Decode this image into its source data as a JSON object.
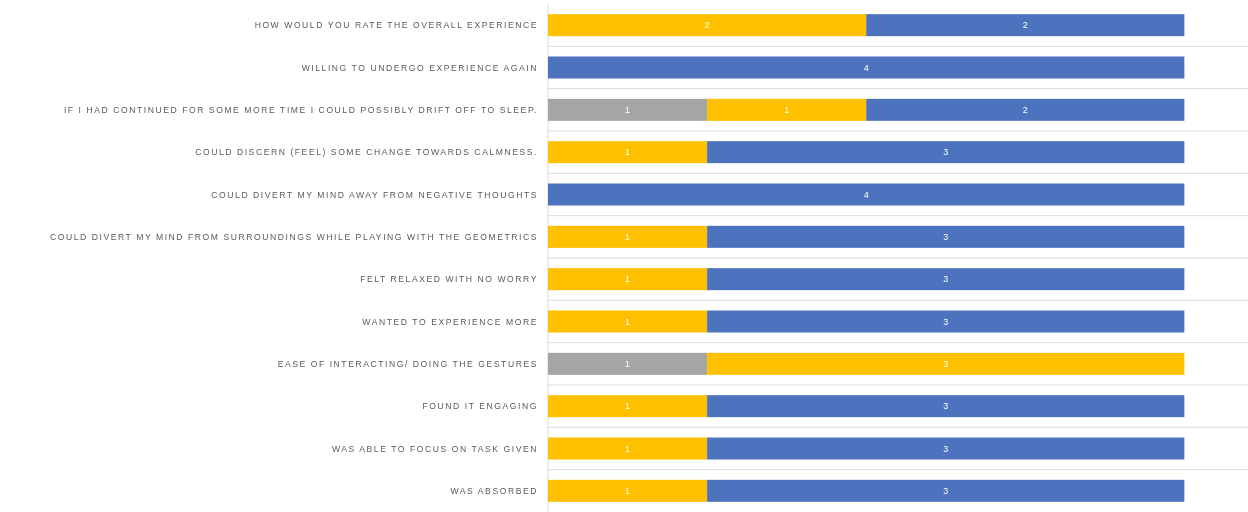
{
  "chart_data": {
    "type": "bar",
    "orientation": "horizontal",
    "stacked": true,
    "data_labels": true,
    "grid": "y",
    "tick_labels": "y",
    "xlim": [
      0,
      4.4
    ],
    "categories": [
      "HOW WOULD YOU RATE THE OVERALL EXPERIENCE",
      "WILLING TO UNDERGO EXPERIENCE AGAIN",
      "IF I HAD CONTINUED FOR SOME MORE TIME I COULD POSSIBLY DRIFT OFF TO SLEEP.",
      "COULD DISCERN (FEEL) SOME CHANGE TOWARDS CALMNESS.",
      "COULD DIVERT MY MIND AWAY FROM NEGATIVE THOUGHTS",
      "COULD DIVERT MY MIND FROM SURROUNDINGS WHILE PLAYING WITH THE GEOMETRICS",
      "FELT RELAXED WITH NO WORRY",
      "WANTED TO EXPERIENCE MORE",
      "EASE OF INTERACTING/ DOING THE GESTURES",
      "FOUND IT ENGAGING",
      "WAS ABLE TO FOCUS ON TASK GIVEN",
      "WAS ABSORBED"
    ],
    "series": [
      {
        "color": "#a5a5a5",
        "values": [
          null,
          null,
          1,
          null,
          null,
          null,
          null,
          null,
          1,
          null,
          null,
          null
        ]
      },
      {
        "color": "#ffc000",
        "values": [
          2,
          null,
          1,
          1,
          null,
          1,
          1,
          1,
          3,
          1,
          1,
          1
        ]
      },
      {
        "color": "#4e73be",
        "values": [
          2,
          4,
          2,
          3,
          4,
          3,
          3,
          3,
          null,
          3,
          3,
          3
        ]
      }
    ]
  }
}
